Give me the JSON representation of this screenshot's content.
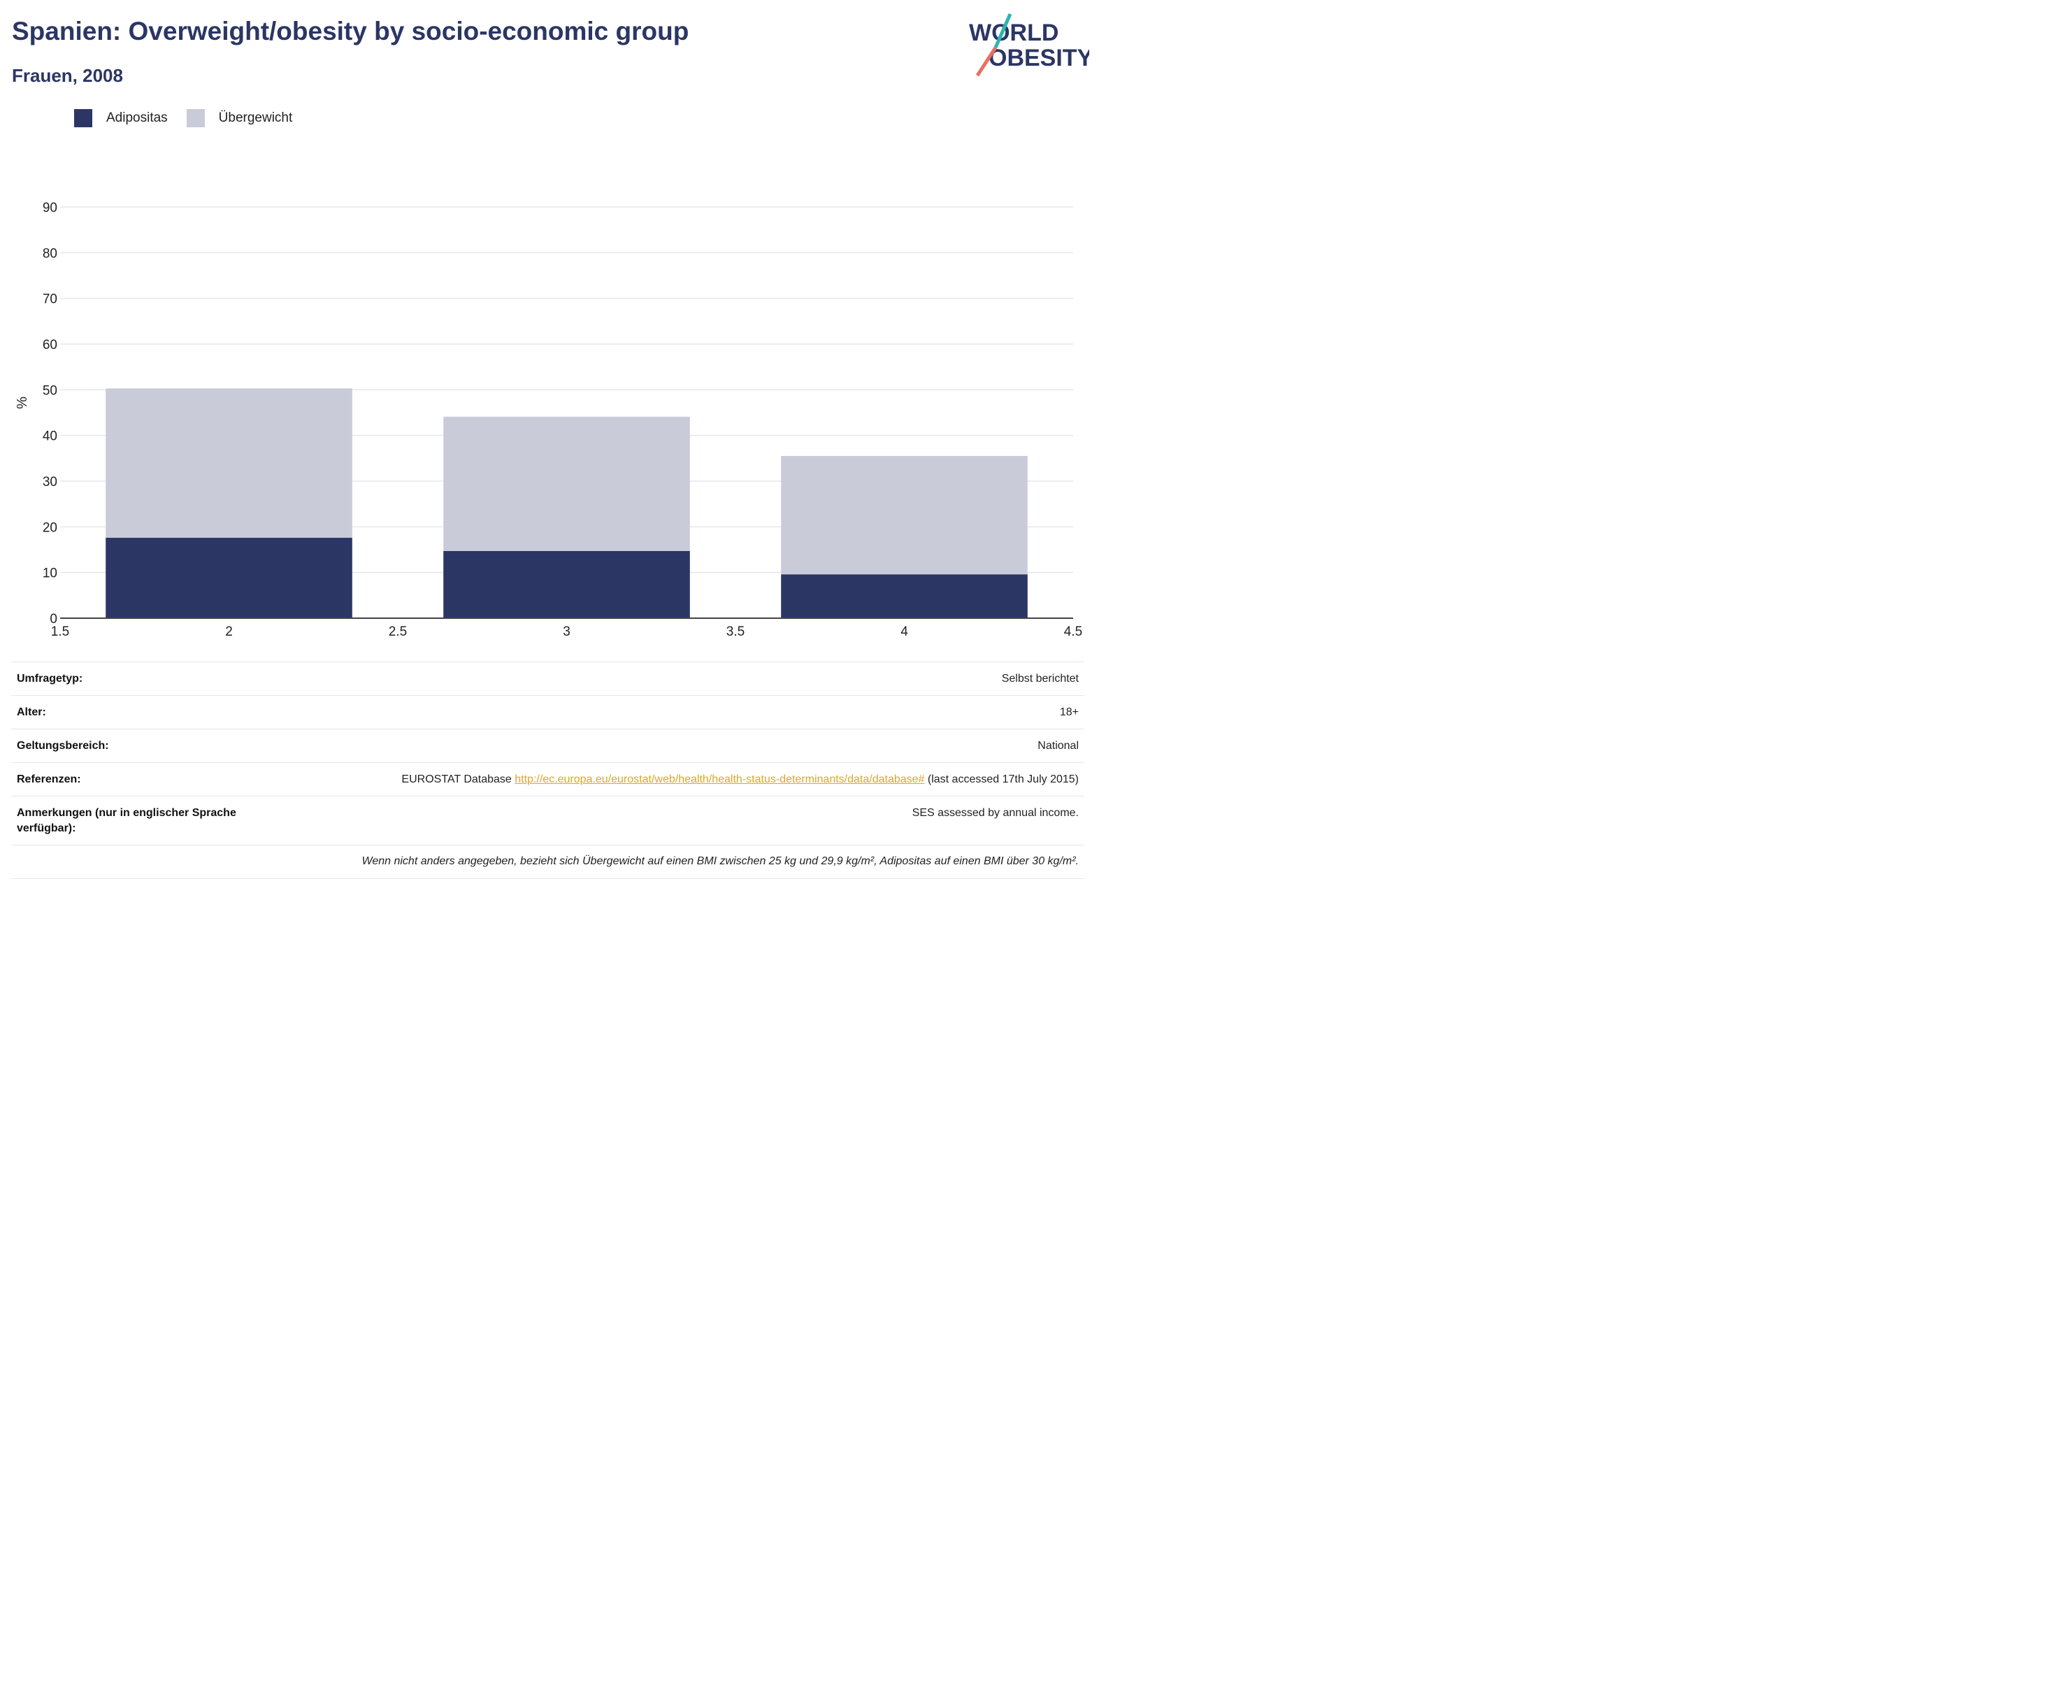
{
  "header": {
    "title": "Spanien: Overweight/obesity by socio-economic group",
    "subtitle": "Frauen, 2008"
  },
  "logo": {
    "line1": "WORLD",
    "line2": "OBESITY"
  },
  "colors": {
    "obesity": "#2b3665",
    "overweight": "#c9ccd8",
    "accent_link": "#e8a41c",
    "logo_teal": "#2bb6b0",
    "logo_coral": "#e8705e"
  },
  "chart_data": {
    "type": "bar",
    "stacked": true,
    "x": [
      2,
      3,
      4
    ],
    "series": [
      {
        "name": "Adipositas",
        "values": [
          17.6,
          14.7,
          9.6
        ]
      },
      {
        "name": "Übergewicht",
        "values": [
          32.7,
          29.4,
          25.9
        ]
      }
    ],
    "totals": [
      50.3,
      44.1,
      35.5
    ],
    "xlim": [
      1.5,
      4.5
    ],
    "xticks": [
      "1.5",
      "2",
      "2.5",
      "3",
      "3.5",
      "4",
      "4.5"
    ],
    "ylim": [
      0,
      90
    ],
    "yticks": [
      "0",
      "10",
      "20",
      "30",
      "40",
      "50",
      "60",
      "70",
      "80",
      "90"
    ],
    "ylabel": "%",
    "xlabel": "",
    "grid": true,
    "legend": "top-left"
  },
  "info": {
    "rows": [
      {
        "key": "Umfragetyp:",
        "value": "Selbst berichtet"
      },
      {
        "key": "Alter:",
        "value": "18+"
      },
      {
        "key": "Geltungsbereich:",
        "value": "National"
      }
    ],
    "references": {
      "key": "Referenzen:",
      "prefix": "EUROSTAT Database ",
      "link": "http://ec.europa.eu/eurostat/web/health/health-status-determinants/data/database#",
      "suffix": " (last accessed 17th July 2015)"
    },
    "notes": {
      "key": "Anmerkungen (nur in englischer Sprache verfügbar):",
      "value": "SES assessed by annual income."
    },
    "footnote": "Wenn nicht anders angegeben, bezieht sich Übergewicht auf einen BMI zwischen 25 kg und 29,9 kg/m², Adipositas auf einen BMI über 30 kg/m²."
  }
}
